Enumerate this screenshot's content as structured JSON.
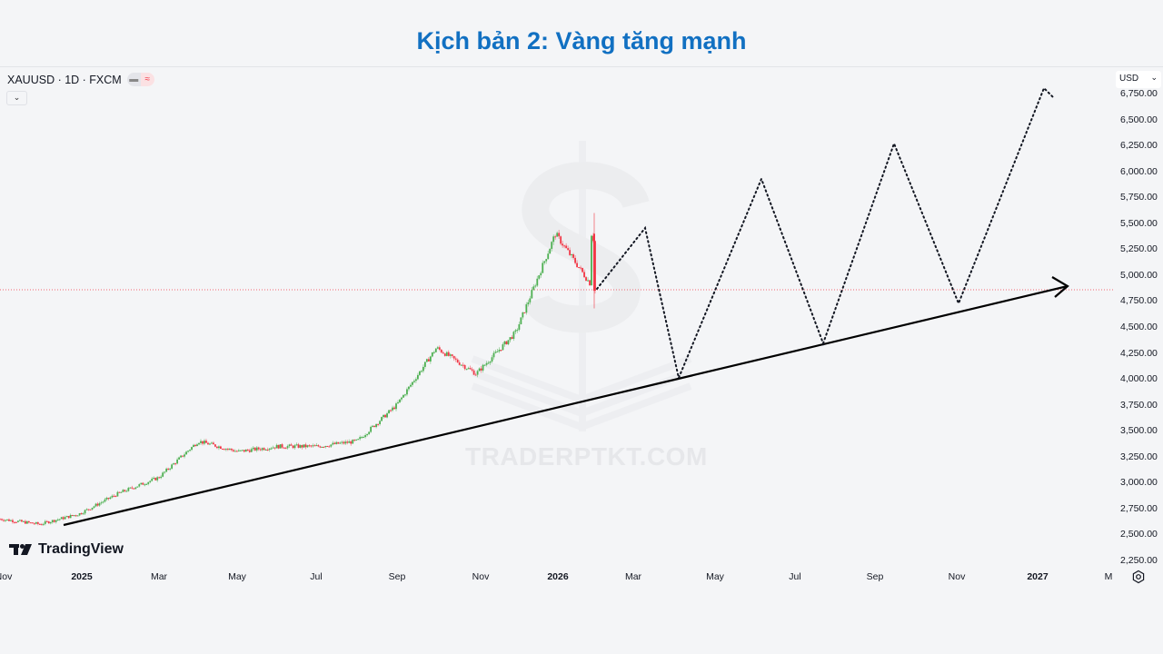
{
  "header": {
    "title": "Kịch bản 2: Vàng tăng mạnh"
  },
  "symbol_bar": {
    "symbol": "XAUUSD · 1D · FXCM",
    "pill_left": "▬",
    "pill_right": "≈",
    "collapse_icon": "⌄"
  },
  "currency_selector": {
    "value": "USD",
    "chevron": "⌄"
  },
  "watermark": {
    "text": "TRADERPTKT.COM"
  },
  "branding": {
    "logo_text": "TradingView"
  },
  "colors": {
    "title": "#1170c2",
    "up_candle": "#4caf50",
    "down_candle": "#f23645",
    "trendline": "#000000",
    "projection": "#131722",
    "price_line": "#f23645"
  },
  "chart_data": {
    "type": "candlestick",
    "title": "Kịch bản 2: Vàng tăng mạnh",
    "instrument": "XAUUSD",
    "timeframe": "1D",
    "source": "FXCM",
    "currency": "USD",
    "y_ticks": [
      "6,750.00",
      "6,500.00",
      "6,250.00",
      "6,000.00",
      "5,750.00",
      "5,500.00",
      "5,250.00",
      "5,000.00",
      "4,750.00",
      "4,500.00",
      "4,250.00",
      "4,000.00",
      "3,750.00",
      "3,500.00",
      "3,250.00",
      "3,000.00",
      "2,750.00",
      "2,500.00",
      "2,250.00"
    ],
    "x_ticks": [
      {
        "label": "Nov",
        "bold": false
      },
      {
        "label": "2025",
        "bold": true
      },
      {
        "label": "Mar",
        "bold": false
      },
      {
        "label": "May",
        "bold": false
      },
      {
        "label": "Jul",
        "bold": false
      },
      {
        "label": "Sep",
        "bold": false
      },
      {
        "label": "Nov",
        "bold": false
      },
      {
        "label": "2026",
        "bold": true
      },
      {
        "label": "Mar",
        "bold": false
      },
      {
        "label": "May",
        "bold": false
      },
      {
        "label": "Jul",
        "bold": false
      },
      {
        "label": "Sep",
        "bold": false
      },
      {
        "label": "Nov",
        "bold": false
      },
      {
        "label": "2027",
        "bold": true
      },
      {
        "label": "M",
        "bold": false
      }
    ],
    "ylim": [
      2150,
      6850
    ],
    "price_history_approx": [
      {
        "date": "2024-11",
        "price": 2650
      },
      {
        "date": "2024-12",
        "price": 2600
      },
      {
        "date": "2025-01",
        "price": 2700
      },
      {
        "date": "2025-02",
        "price": 2900
      },
      {
        "date": "2025-03",
        "price": 3050
      },
      {
        "date": "2025-04",
        "price": 3400
      },
      {
        "date": "2025-05",
        "price": 3300
      },
      {
        "date": "2025-06",
        "price": 3350
      },
      {
        "date": "2025-07",
        "price": 3350
      },
      {
        "date": "2025-08",
        "price": 3400
      },
      {
        "date": "2025-09",
        "price": 3750
      },
      {
        "date": "2025-10",
        "price": 4300
      },
      {
        "date": "2025-11",
        "price": 4050
      },
      {
        "date": "2025-12",
        "price": 4450
      },
      {
        "date": "2026-01",
        "price": 5400
      },
      {
        "date": "2026-02",
        "price": 4850
      }
    ],
    "last_price": 4850,
    "recent_high": 5600,
    "projection_path": [
      {
        "date": "2026-02",
        "price": 4850
      },
      {
        "date": "2026-03",
        "price": 5450
      },
      {
        "date": "2026-04",
        "price": 4000
      },
      {
        "date": "2026-06",
        "price": 5950
      },
      {
        "date": "2026-07",
        "price": 4330
      },
      {
        "date": "2026-09",
        "price": 6270
      },
      {
        "date": "2026-11",
        "price": 4680
      },
      {
        "date": "2027-01",
        "price": 6800
      }
    ],
    "trendline": {
      "start": {
        "date": "2024-12",
        "price": 2590
      },
      "end": {
        "date": "2027-01",
        "price": 4880
      },
      "arrow": true
    },
    "annotations": [
      "Rising support trendline",
      "Dotted zig-zag projection (bullish scenario)"
    ]
  }
}
